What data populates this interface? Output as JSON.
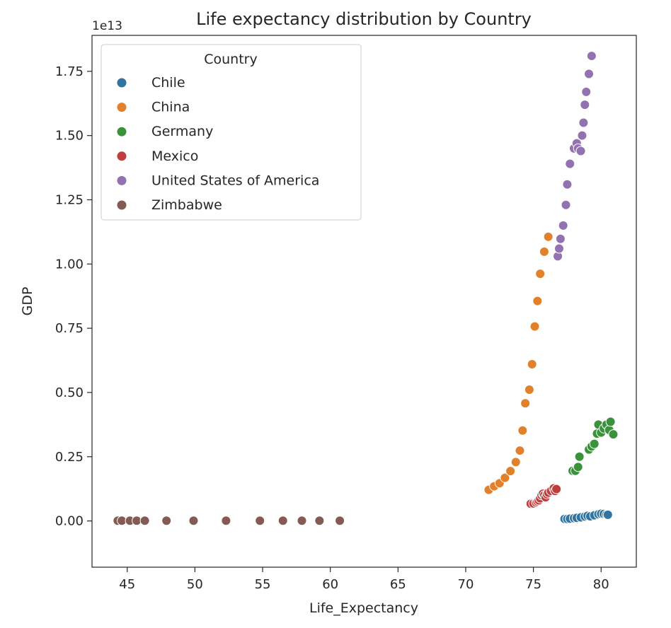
{
  "chart_data": {
    "type": "scatter",
    "title": "Life expectancy distribution by Country",
    "xlabel": "Life_Expectancy",
    "ylabel": "GDP",
    "y_offset_text": "1e13",
    "xlim": [
      42.4,
      82.6
    ],
    "ylim": [
      -0.18,
      1.89
    ],
    "y_unit_multiplier": 10000000000000.0,
    "xticks": [
      45,
      50,
      55,
      60,
      65,
      70,
      75,
      80
    ],
    "xtick_labels": [
      "45",
      "50",
      "55",
      "60",
      "65",
      "70",
      "75",
      "80"
    ],
    "yticks": [
      0.0,
      0.25,
      0.5,
      0.75,
      1.0,
      1.25,
      1.5,
      1.75
    ],
    "ytick_labels": [
      "0.00",
      "0.25",
      "0.50",
      "0.75",
      "1.00",
      "1.25",
      "1.50",
      "1.75"
    ],
    "grid": false,
    "legend": {
      "title": "Country",
      "placement": "top-left"
    },
    "series": [
      {
        "name": "Chile",
        "color": "#3274a1",
        "points": [
          [
            77.3,
            0.008
          ],
          [
            77.5,
            0.008
          ],
          [
            77.7,
            0.009
          ],
          [
            78.0,
            0.011
          ],
          [
            78.2,
            0.012
          ],
          [
            78.5,
            0.014
          ],
          [
            78.8,
            0.017
          ],
          [
            79.0,
            0.02
          ],
          [
            79.2,
            0.018
          ],
          [
            79.5,
            0.022
          ],
          [
            79.8,
            0.026
          ],
          [
            80.0,
            0.028
          ],
          [
            80.2,
            0.027
          ],
          [
            80.4,
            0.025
          ],
          [
            80.5,
            0.024
          ]
        ]
      },
      {
        "name": "China",
        "color": "#e1812c",
        "points": [
          [
            71.7,
            0.121
          ],
          [
            72.1,
            0.135
          ],
          [
            72.5,
            0.147
          ],
          [
            72.9,
            0.168
          ],
          [
            73.3,
            0.194
          ],
          [
            73.7,
            0.229
          ],
          [
            74.0,
            0.274
          ],
          [
            74.2,
            0.352
          ],
          [
            74.4,
            0.458
          ],
          [
            74.7,
            0.511
          ],
          [
            74.9,
            0.61
          ],
          [
            75.1,
            0.757
          ],
          [
            75.3,
            0.856
          ],
          [
            75.5,
            0.962
          ],
          [
            75.8,
            1.048
          ],
          [
            76.1,
            1.106
          ]
        ]
      },
      {
        "name": "Germany",
        "color": "#3a923a",
        "points": [
          [
            77.9,
            0.195
          ],
          [
            78.1,
            0.195
          ],
          [
            78.3,
            0.21
          ],
          [
            78.4,
            0.25
          ],
          [
            79.1,
            0.278
          ],
          [
            79.3,
            0.29
          ],
          [
            79.5,
            0.3
          ],
          [
            79.7,
            0.34
          ],
          [
            79.8,
            0.375
          ],
          [
            80.0,
            0.344
          ],
          [
            80.2,
            0.36
          ],
          [
            80.4,
            0.375
          ],
          [
            80.6,
            0.354
          ],
          [
            80.7,
            0.386
          ],
          [
            80.9,
            0.337
          ]
        ]
      },
      {
        "name": "Mexico",
        "color": "#c03d3e",
        "points": [
          [
            74.8,
            0.067
          ],
          [
            75.0,
            0.068
          ],
          [
            75.2,
            0.072
          ],
          [
            75.3,
            0.076
          ],
          [
            75.4,
            0.08
          ],
          [
            75.5,
            0.088
          ],
          [
            75.6,
            0.1
          ],
          [
            75.7,
            0.106
          ],
          [
            75.8,
            0.1
          ],
          [
            75.9,
            0.092
          ],
          [
            76.0,
            0.104
          ],
          [
            76.1,
            0.11
          ],
          [
            76.3,
            0.117
          ],
          [
            76.5,
            0.127
          ],
          [
            76.6,
            0.117
          ],
          [
            76.7,
            0.124
          ]
        ]
      },
      {
        "name": "United States of America",
        "color": "#9372b2",
        "points": [
          [
            76.8,
            1.03
          ],
          [
            76.9,
            1.06
          ],
          [
            77.0,
            1.098
          ],
          [
            77.2,
            1.15
          ],
          [
            77.4,
            1.23
          ],
          [
            77.5,
            1.31
          ],
          [
            77.7,
            1.39
          ],
          [
            78.0,
            1.45
          ],
          [
            78.2,
            1.47
          ],
          [
            78.3,
            1.45
          ],
          [
            78.5,
            1.44
          ],
          [
            78.6,
            1.5
          ],
          [
            78.7,
            1.55
          ],
          [
            78.8,
            1.62
          ],
          [
            78.9,
            1.67
          ],
          [
            79.1,
            1.74
          ],
          [
            79.3,
            1.81
          ]
        ]
      },
      {
        "name": "Zimbabwe",
        "color": "#845b53",
        "points": [
          [
            44.3,
            0.001
          ],
          [
            44.6,
            0.001
          ],
          [
            45.2,
            0.001
          ],
          [
            45.7,
            0.001
          ],
          [
            46.3,
            0.001
          ],
          [
            47.9,
            0.001
          ],
          [
            49.9,
            0.001
          ],
          [
            52.3,
            0.001
          ],
          [
            54.8,
            0.001
          ],
          [
            56.5,
            0.001
          ],
          [
            57.9,
            0.001
          ],
          [
            59.2,
            0.001
          ],
          [
            60.7,
            0.001
          ]
        ]
      }
    ]
  }
}
